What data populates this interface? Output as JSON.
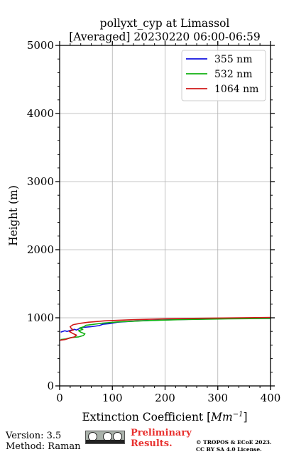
{
  "footer": {
    "version": "Version: 3.5",
    "method": "Method: Raman",
    "preliminary_line1": "Preliminary",
    "preliminary_line2": "Results.",
    "copyright_line1": "© TROPOS & ECoE 2023.",
    "copyright_line2": "CC BY SA 4.0 License."
  },
  "chart_data": {
    "type": "line",
    "title": "pollyxt_cyp at Limassol",
    "subtitle": "[Averaged] 20230220 06:00-06:59",
    "xlabel_prefix": "Extinction Coefficient [",
    "xlabel_unit": "Mm",
    "xlabel_exp": "−1",
    "xlabel_suffix": "]",
    "ylabel": "Height (m)",
    "xlim": [
      0,
      400
    ],
    "ylim": [
      0,
      5000
    ],
    "xticks": [
      0,
      100,
      200,
      300,
      400
    ],
    "yticks": [
      0,
      1000,
      2000,
      3000,
      4000,
      5000
    ],
    "grid": true,
    "legend_position": "top-right",
    "series": [
      {
        "name": "355 nm",
        "color": "#1010e0",
        "points": [
          [
            2,
            790
          ],
          [
            10,
            810
          ],
          [
            14,
            800
          ],
          [
            20,
            815
          ],
          [
            28,
            830
          ],
          [
            32,
            820
          ],
          [
            38,
            845
          ],
          [
            45,
            860
          ],
          [
            60,
            870
          ],
          [
            75,
            885
          ],
          [
            82,
            905
          ],
          [
            95,
            915
          ],
          [
            110,
            935
          ],
          [
            150,
            955
          ],
          [
            200,
            970
          ],
          [
            260,
            980
          ],
          [
            330,
            990
          ],
          [
            400,
            995
          ]
        ]
      },
      {
        "name": "532 nm",
        "color": "#10b010",
        "points": [
          [
            2,
            680
          ],
          [
            12,
            690
          ],
          [
            22,
            710
          ],
          [
            36,
            720
          ],
          [
            45,
            740
          ],
          [
            48,
            765
          ],
          [
            40,
            790
          ],
          [
            36,
            810
          ],
          [
            44,
            830
          ],
          [
            38,
            850
          ],
          [
            46,
            870
          ],
          [
            50,
            890
          ],
          [
            80,
            920
          ],
          [
            110,
            940
          ],
          [
            170,
            960
          ],
          [
            240,
            975
          ],
          [
            320,
            985
          ],
          [
            400,
            990
          ]
        ]
      },
      {
        "name": "1064 nm",
        "color": "#d01818",
        "points": [
          [
            0,
            670
          ],
          [
            10,
            680
          ],
          [
            18,
            700
          ],
          [
            28,
            720
          ],
          [
            32,
            745
          ],
          [
            25,
            770
          ],
          [
            18,
            800
          ],
          [
            26,
            820
          ],
          [
            22,
            845
          ],
          [
            20,
            870
          ],
          [
            26,
            900
          ],
          [
            40,
            920
          ],
          [
            55,
            935
          ],
          [
            85,
            955
          ],
          [
            130,
            970
          ],
          [
            200,
            985
          ],
          [
            280,
            995
          ],
          [
            400,
            1005
          ]
        ]
      }
    ]
  }
}
